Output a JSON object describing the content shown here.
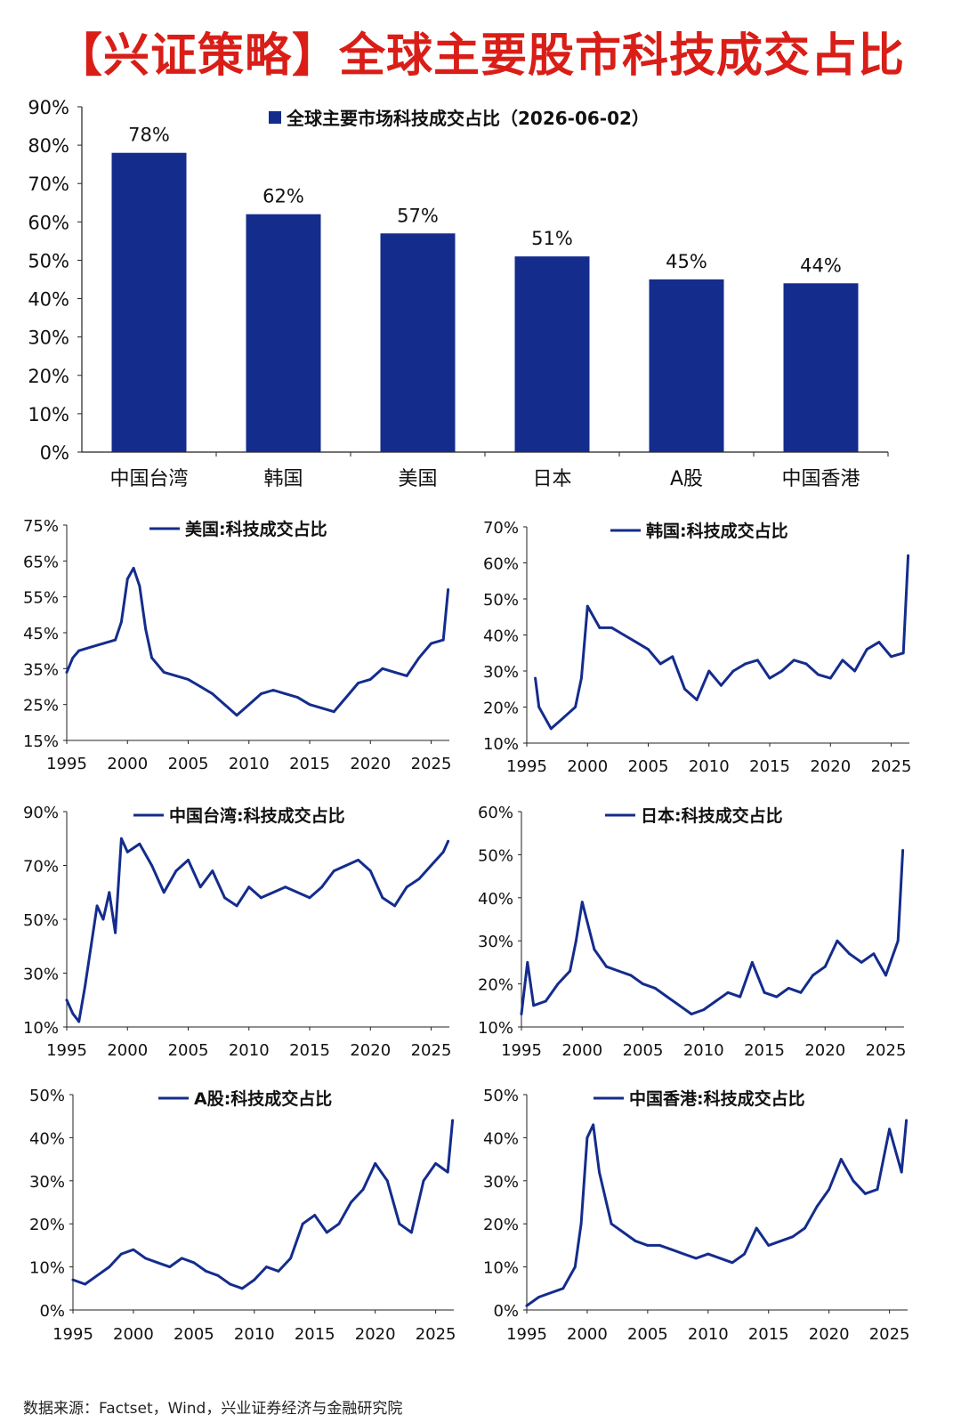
{
  "title": "【兴证策略】全球主要股市科技成交占比",
  "source": "数据来源：Factset，Wind，兴业证券经济与金融研究院",
  "colors": {
    "title": "#d91e18",
    "series": "#142c8c",
    "bar": "#142c8c"
  },
  "chart_data": [
    {
      "type": "bar",
      "legend": "全球主要市场科技成交占比（2026-06-02）",
      "categories": [
        "中国台湾",
        "韩国",
        "美国",
        "日本",
        "A股",
        "中国香港"
      ],
      "values": [
        78,
        62,
        57,
        51,
        45,
        44
      ],
      "data_labels": [
        "78%",
        "62%",
        "57%",
        "51%",
        "45%",
        "44%"
      ],
      "ylim": [
        0,
        90
      ],
      "yticks": [
        "0%",
        "10%",
        "20%",
        "30%",
        "40%",
        "50%",
        "60%",
        "70%",
        "80%",
        "90%"
      ],
      "grid": false,
      "legend_position": "top"
    },
    {
      "type": "line",
      "legend": "美国:科技成交占比",
      "ylim": [
        15,
        75
      ],
      "yticks": [
        "15%",
        "25%",
        "35%",
        "45%",
        "55%",
        "65%",
        "75%"
      ],
      "xlim": [
        1995,
        2026.5
      ],
      "xticks": [
        "1995",
        "2000",
        "2005",
        "2010",
        "2015",
        "2020",
        "2025"
      ],
      "x": [
        1995,
        1995.5,
        1996,
        1997,
        1998,
        1999,
        1999.5,
        2000,
        2000.5,
        2001,
        2001.5,
        2002,
        2003,
        2004,
        2005,
        2006,
        2007,
        2008,
        2009,
        2010,
        2011,
        2012,
        2013,
        2014,
        2015,
        2016,
        2017,
        2018,
        2019,
        2020,
        2021,
        2022,
        2023,
        2024,
        2025,
        2026,
        2026.4
      ],
      "values": [
        34,
        38,
        40,
        41,
        42,
        43,
        48,
        60,
        63,
        58,
        46,
        38,
        34,
        33,
        32,
        30,
        28,
        25,
        22,
        25,
        28,
        29,
        28,
        27,
        25,
        24,
        23,
        27,
        31,
        32,
        35,
        34,
        33,
        38,
        42,
        43,
        57
      ],
      "grid": false,
      "legend_position": "top"
    },
    {
      "type": "line",
      "legend": "韩国:科技成交占比",
      "ylim": [
        10,
        70
      ],
      "yticks": [
        "10%",
        "20%",
        "30%",
        "40%",
        "50%",
        "60%",
        "70%"
      ],
      "xlim": [
        1995,
        2026.5
      ],
      "xticks": [
        "1995",
        "2000",
        "2005",
        "2010",
        "2015",
        "2020",
        "2025"
      ],
      "x": [
        1995.7,
        1996,
        1997,
        1998,
        1999,
        1999.5,
        2000,
        2001,
        2002,
        2003,
        2004,
        2005,
        2006,
        2007,
        2008,
        2009,
        2010,
        2011,
        2012,
        2013,
        2014,
        2015,
        2016,
        2017,
        2018,
        2019,
        2020,
        2021,
        2022,
        2023,
        2024,
        2025,
        2026,
        2026.4
      ],
      "values": [
        28,
        20,
        14,
        17,
        20,
        28,
        48,
        42,
        42,
        40,
        38,
        36,
        32,
        34,
        25,
        22,
        30,
        26,
        30,
        32,
        33,
        28,
        30,
        33,
        32,
        29,
        28,
        33,
        30,
        36,
        38,
        34,
        35,
        62
      ],
      "grid": false,
      "legend_position": "top"
    },
    {
      "type": "line",
      "legend": "中国台湾:科技成交占比",
      "ylim": [
        10,
        90
      ],
      "yticks": [
        "10%",
        "30%",
        "50%",
        "70%",
        "90%"
      ],
      "xlim": [
        1995,
        2026.5
      ],
      "xticks": [
        "1995",
        "2000",
        "2005",
        "2010",
        "2015",
        "2020",
        "2025"
      ],
      "x": [
        1995,
        1995.5,
        1996,
        1996.5,
        1997,
        1997.5,
        1998,
        1998.5,
        1999,
        1999.5,
        2000,
        2001,
        2002,
        2003,
        2004,
        2005,
        2006,
        2007,
        2008,
        2009,
        2010,
        2011,
        2012,
        2013,
        2014,
        2015,
        2016,
        2017,
        2018,
        2019,
        2020,
        2021,
        2022,
        2023,
        2024,
        2025,
        2026,
        2026.4
      ],
      "values": [
        20,
        15,
        12,
        25,
        40,
        55,
        50,
        60,
        45,
        80,
        75,
        78,
        70,
        60,
        68,
        72,
        62,
        68,
        58,
        55,
        62,
        58,
        60,
        62,
        60,
        58,
        62,
        68,
        70,
        72,
        68,
        58,
        55,
        62,
        65,
        70,
        75,
        79
      ],
      "grid": false,
      "legend_position": "top"
    },
    {
      "type": "line",
      "legend": "日本:科技成交占比",
      "ylim": [
        10,
        60
      ],
      "yticks": [
        "10%",
        "20%",
        "30%",
        "40%",
        "50%",
        "60%"
      ],
      "xlim": [
        1995,
        2026.5
      ],
      "xticks": [
        "1995",
        "2000",
        "2005",
        "2010",
        "2015",
        "2020",
        "2025"
      ],
      "x": [
        1995,
        1995.5,
        1996,
        1997,
        1998,
        1999,
        1999.5,
        2000,
        2001,
        2002,
        2003,
        2004,
        2005,
        2006,
        2007,
        2008,
        2009,
        2010,
        2011,
        2012,
        2013,
        2014,
        2015,
        2016,
        2017,
        2018,
        2019,
        2020,
        2021,
        2022,
        2023,
        2024,
        2025,
        2026,
        2026.4
      ],
      "values": [
        13,
        25,
        15,
        16,
        20,
        23,
        30,
        39,
        28,
        24,
        23,
        22,
        20,
        19,
        17,
        15,
        13,
        14,
        16,
        18,
        17,
        25,
        18,
        17,
        19,
        18,
        22,
        24,
        30,
        27,
        25,
        27,
        22,
        30,
        51
      ],
      "grid": false,
      "legend_position": "top"
    },
    {
      "type": "line",
      "legend": "A股:科技成交占比",
      "ylim": [
        0,
        50
      ],
      "yticks": [
        "0%",
        "10%",
        "20%",
        "30%",
        "40%",
        "50%"
      ],
      "xlim": [
        1995,
        2026.5
      ],
      "xticks": [
        "1995",
        "2000",
        "2005",
        "2010",
        "2015",
        "2020",
        "2025"
      ],
      "x": [
        1995,
        1996,
        1997,
        1998,
        1999,
        2000,
        2001,
        2002,
        2003,
        2004,
        2005,
        2006,
        2007,
        2008,
        2009,
        2010,
        2011,
        2012,
        2013,
        2014,
        2015,
        2016,
        2017,
        2018,
        2019,
        2020,
        2021,
        2022,
        2023,
        2024,
        2025,
        2026,
        2026.4
      ],
      "values": [
        7,
        6,
        8,
        10,
        13,
        14,
        12,
        11,
        10,
        12,
        11,
        9,
        8,
        6,
        5,
        7,
        10,
        9,
        12,
        20,
        22,
        18,
        20,
        25,
        28,
        34,
        30,
        20,
        18,
        30,
        34,
        32,
        44
      ],
      "grid": false,
      "legend_position": "top"
    },
    {
      "type": "line",
      "legend": "中国香港:科技成交占比",
      "ylim": [
        0,
        50
      ],
      "yticks": [
        "0%",
        "10%",
        "20%",
        "30%",
        "40%",
        "50%"
      ],
      "xlim": [
        1995,
        2026.5
      ],
      "xticks": [
        "1995",
        "2000",
        "2005",
        "2010",
        "2015",
        "2020",
        "2025"
      ],
      "x": [
        1995,
        1996,
        1997,
        1998,
        1999,
        1999.5,
        2000,
        2000.5,
        2001,
        2002,
        2003,
        2004,
        2005,
        2006,
        2007,
        2008,
        2009,
        2010,
        2011,
        2012,
        2013,
        2014,
        2015,
        2016,
        2017,
        2018,
        2019,
        2020,
        2021,
        2022,
        2023,
        2024,
        2025,
        2026,
        2026.4
      ],
      "values": [
        1,
        3,
        4,
        5,
        10,
        20,
        40,
        43,
        32,
        20,
        18,
        16,
        15,
        15,
        14,
        13,
        12,
        13,
        12,
        11,
        13,
        19,
        15,
        16,
        17,
        19,
        24,
        28,
        35,
        30,
        27,
        28,
        42,
        32,
        44
      ],
      "grid": false,
      "legend_position": "top"
    }
  ]
}
